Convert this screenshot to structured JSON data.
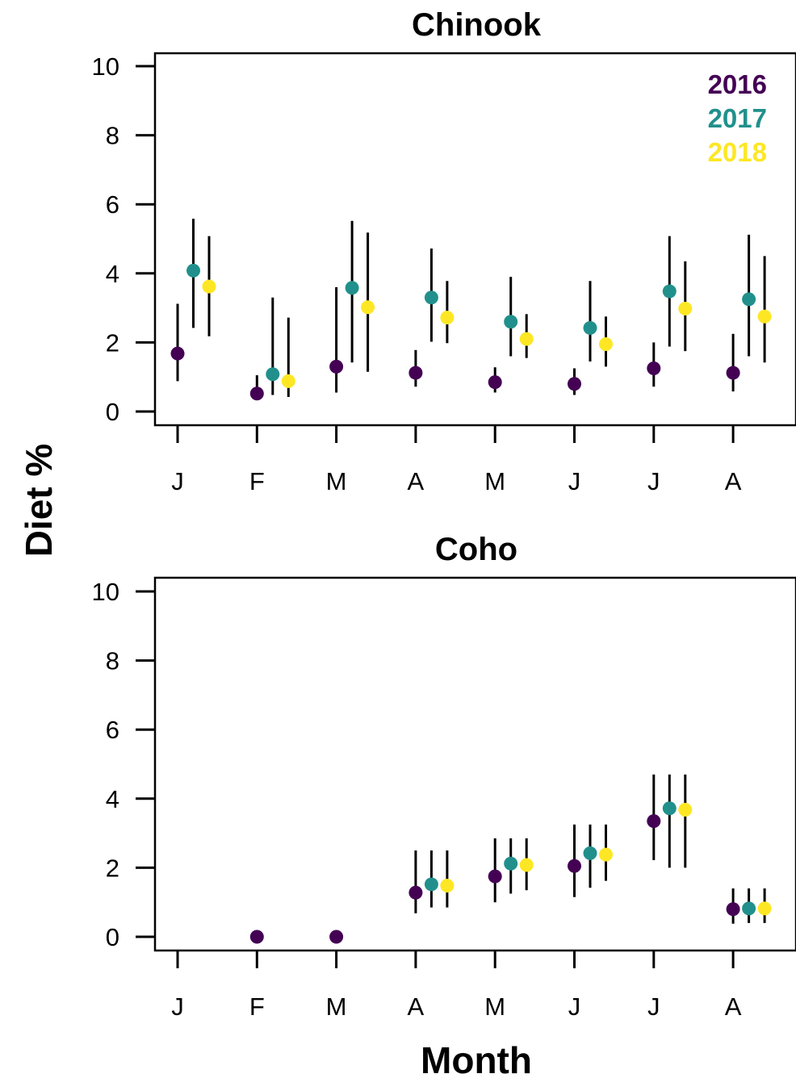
{
  "chart_data": {
    "type": "scatter",
    "ylabel": "Diet %",
    "xlabel": "Month",
    "ylim": [
      0,
      10
    ],
    "yticks": [
      0,
      2,
      4,
      6,
      8,
      10
    ],
    "categories": [
      "J",
      "F",
      "M",
      "A",
      "M",
      "J",
      "J",
      "A"
    ],
    "legend_position": "top-right",
    "series_colors": {
      "2016": "#440154",
      "2017": "#21908c",
      "2018": "#fde725"
    },
    "legend": [
      {
        "name": "2016",
        "color": "#440154"
      },
      {
        "name": "2017",
        "color": "#21908c"
      },
      {
        "name": "2018",
        "color": "#fde725"
      }
    ],
    "panels": [
      {
        "title": "Chinook",
        "series": [
          {
            "name": "2016",
            "color": "#440154",
            "values": [
              1.68,
              0.52,
              1.3,
              1.12,
              0.85,
              0.8,
              1.25,
              1.12
            ],
            "lower": [
              0.88,
              0.35,
              0.55,
              0.72,
              0.55,
              0.48,
              0.72,
              0.58
            ],
            "upper": [
              3.12,
              1.05,
              3.6,
              1.78,
              1.28,
              1.25,
              2.0,
              2.25
            ]
          },
          {
            "name": "2017",
            "color": "#21908c",
            "values": [
              4.08,
              1.08,
              3.58,
              3.3,
              2.6,
              2.42,
              3.48,
              3.25
            ],
            "lower": [
              2.42,
              0.48,
              1.42,
              2.02,
              1.6,
              1.45,
              1.88,
              1.6
            ],
            "upper": [
              5.58,
              3.3,
              5.52,
              4.72,
              3.9,
              3.78,
              5.08,
              5.12
            ]
          },
          {
            "name": "2018",
            "color": "#fde725",
            "values": [
              3.62,
              0.88,
              3.02,
              2.72,
              2.1,
              1.95,
              2.98,
              2.75
            ],
            "lower": [
              2.18,
              0.42,
              1.15,
              1.98,
              1.55,
              1.3,
              1.75,
              1.42
            ],
            "upper": [
              5.08,
              2.72,
              5.18,
              3.78,
              2.82,
              2.75,
              4.35,
              4.5
            ]
          }
        ]
      },
      {
        "title": "Coho",
        "series": [
          {
            "name": "2016",
            "color": "#440154",
            "values": [
              null,
              0.0,
              0.0,
              1.28,
              1.75,
              2.05,
              3.35,
              0.8
            ],
            "lower": [
              null,
              null,
              null,
              0.68,
              1.0,
              1.15,
              2.22,
              0.38
            ],
            "upper": [
              null,
              null,
              null,
              2.5,
              2.85,
              3.25,
              4.7,
              1.4
            ]
          },
          {
            "name": "2017",
            "color": "#21908c",
            "values": [
              null,
              null,
              null,
              1.52,
              2.12,
              2.42,
              3.72,
              0.82
            ],
            "lower": [
              null,
              null,
              null,
              0.85,
              1.25,
              1.42,
              2.0,
              0.4
            ],
            "upper": [
              null,
              null,
              null,
              2.5,
              2.85,
              3.25,
              4.7,
              1.4
            ]
          },
          {
            "name": "2018",
            "color": "#fde725",
            "values": [
              null,
              null,
              null,
              1.48,
              2.08,
              2.38,
              3.68,
              0.82
            ],
            "lower": [
              null,
              null,
              null,
              0.85,
              1.35,
              1.62,
              2.0,
              0.4
            ],
            "upper": [
              null,
              null,
              null,
              2.5,
              2.85,
              3.25,
              4.7,
              1.4
            ]
          }
        ]
      }
    ]
  }
}
